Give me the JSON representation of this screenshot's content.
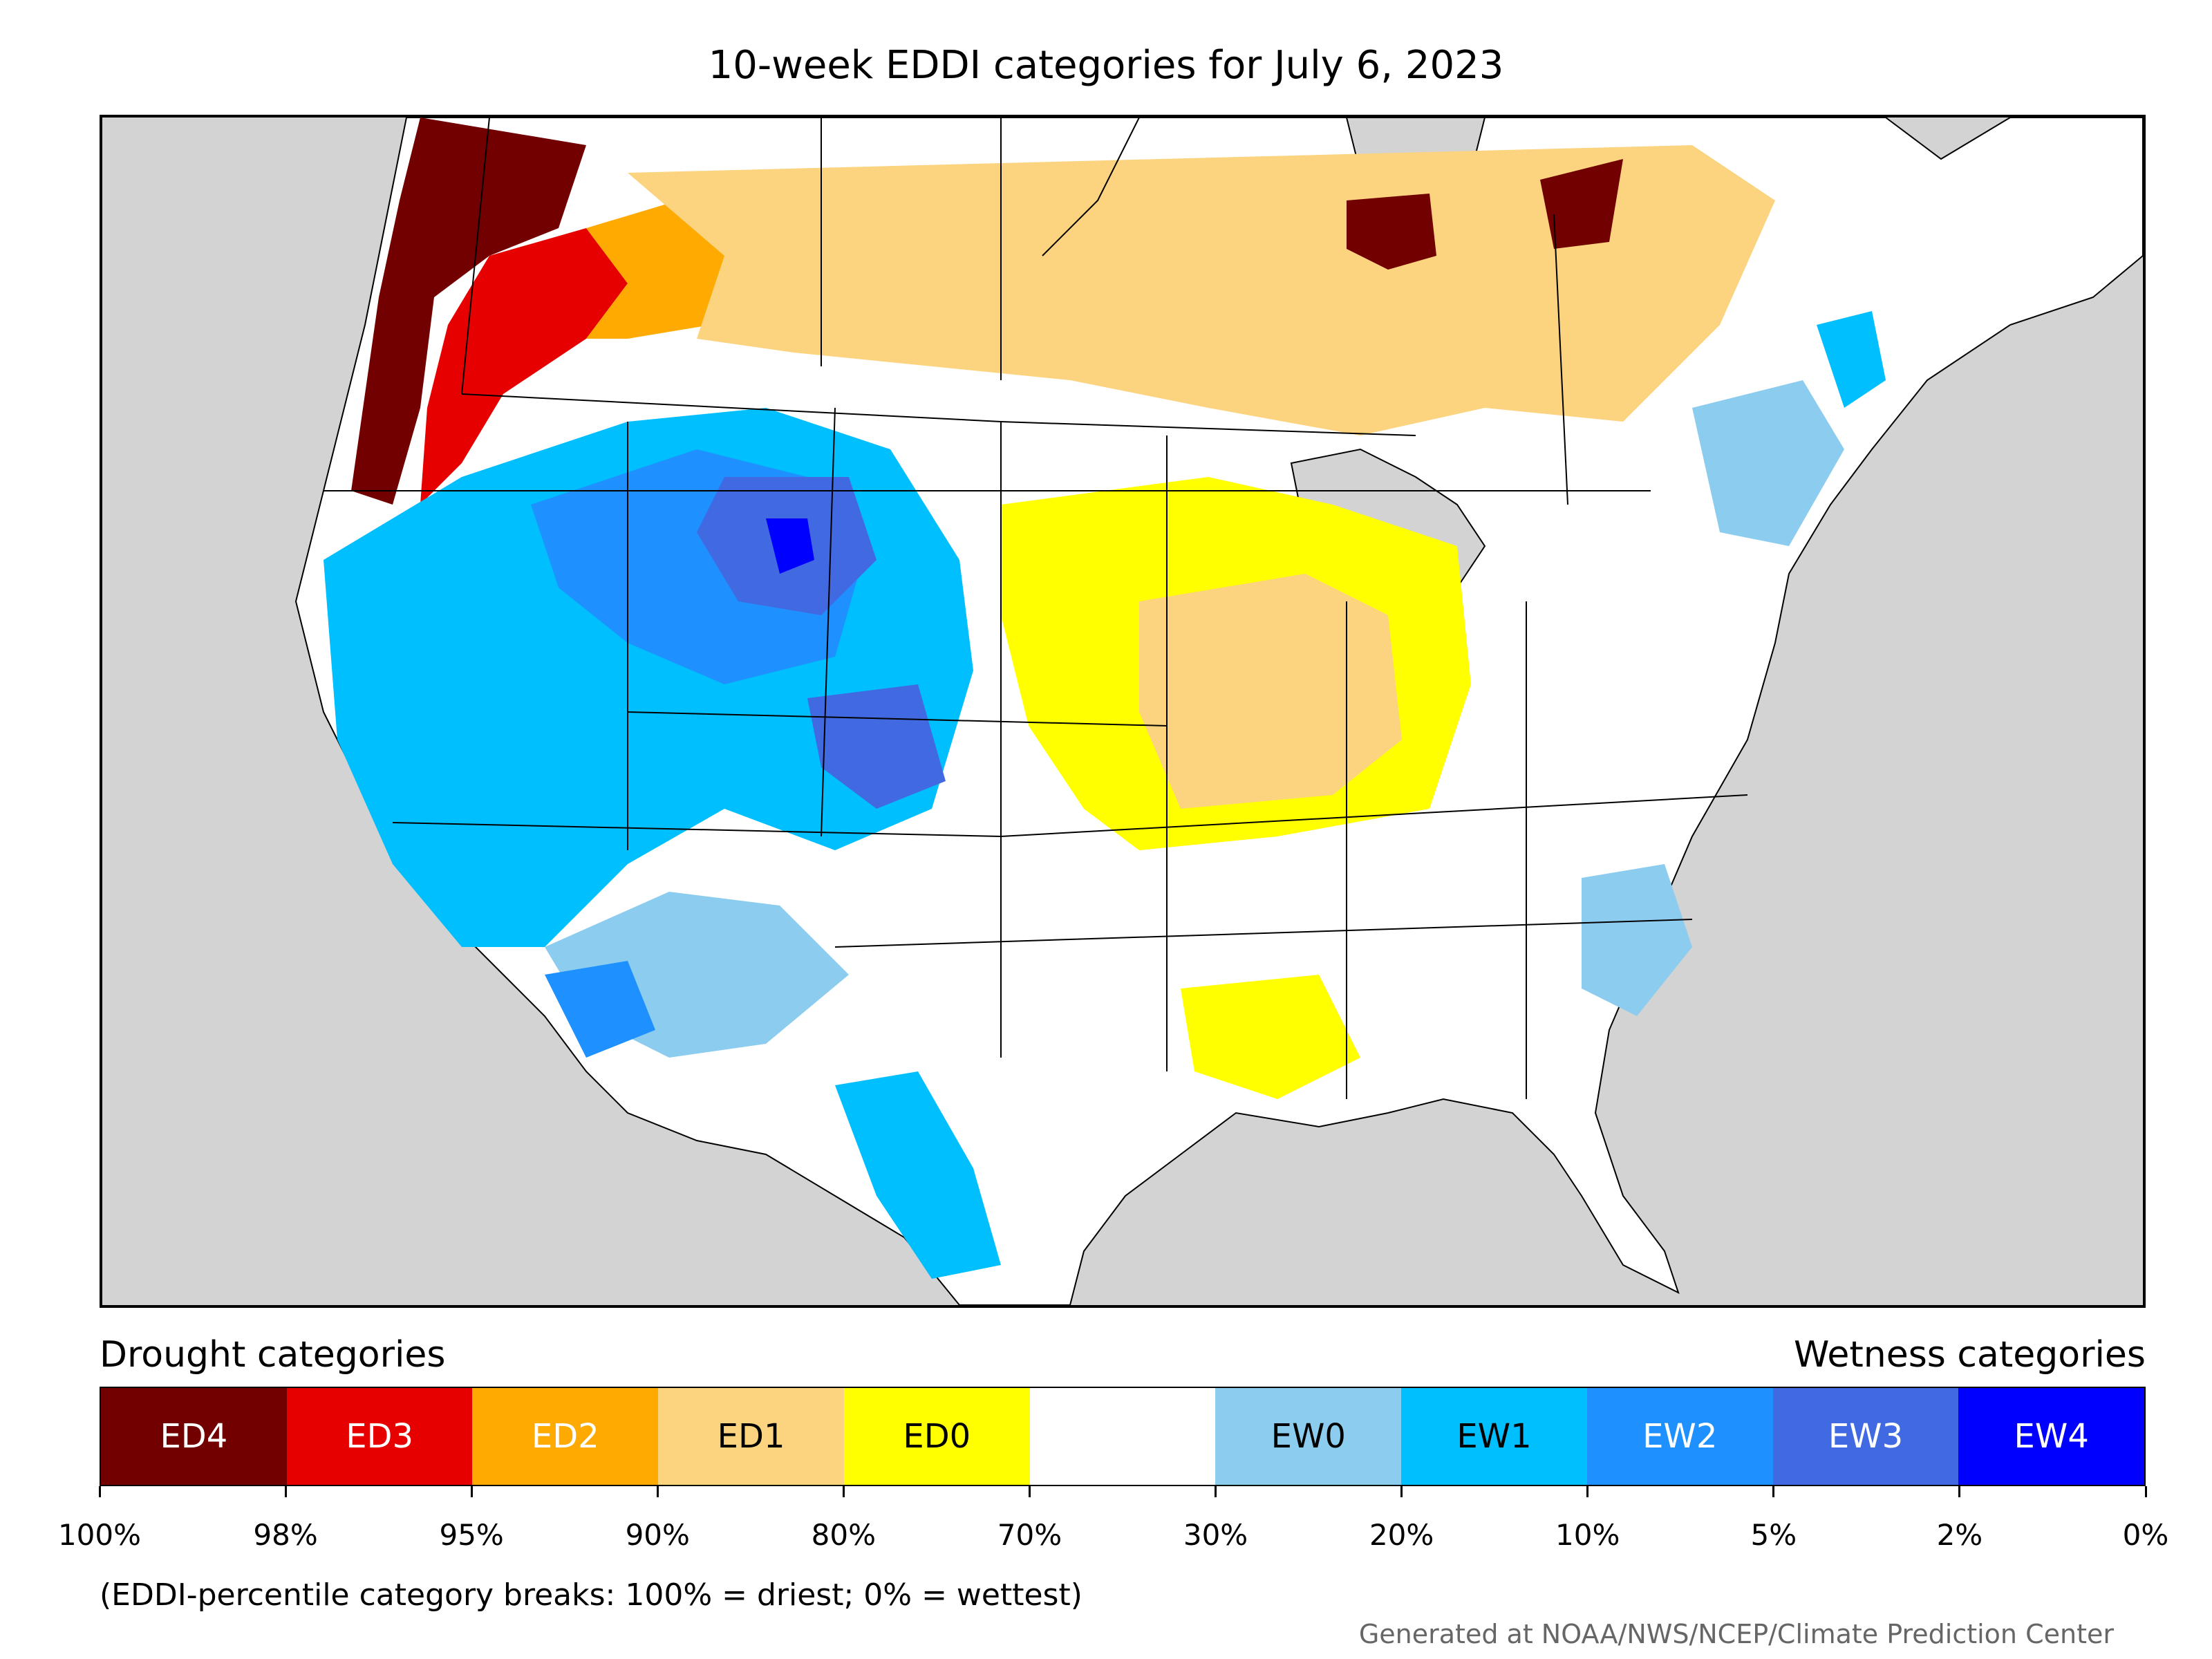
{
  "title": "10-week EDDI categories for July 6, 2023",
  "legend": {
    "drought_label": "Drought categories",
    "wetness_label": "Wetness categories",
    "categories": [
      {
        "code": "ED4",
        "color": "#730000",
        "text_color": "#ffffff"
      },
      {
        "code": "ED3",
        "color": "#e60000",
        "text_color": "#ffffff"
      },
      {
        "code": "ED2",
        "color": "#ffaa00",
        "text_color": "#ffffff"
      },
      {
        "code": "ED1",
        "color": "#fcd37f",
        "text_color": "#000000"
      },
      {
        "code": "ED0",
        "color": "#ffff00",
        "text_color": "#000000"
      },
      {
        "code": "",
        "color": "#ffffff",
        "text_color": "#000000"
      },
      {
        "code": "EW0",
        "color": "#8ccdef",
        "text_color": "#000000"
      },
      {
        "code": "EW1",
        "color": "#00bfff",
        "text_color": "#000000"
      },
      {
        "code": "EW2",
        "color": "#1e90ff",
        "text_color": "#ffffff"
      },
      {
        "code": "EW3",
        "color": "#4169e1",
        "text_color": "#ffffff"
      },
      {
        "code": "EW4",
        "color": "#0000ff",
        "text_color": "#ffffff"
      }
    ],
    "breaks": [
      "100%",
      "98%",
      "95%",
      "90%",
      "80%",
      "70%",
      "30%",
      "20%",
      "10%",
      "5%",
      "2%",
      "0%"
    ]
  },
  "note": "(EDDI-percentile category breaks: 100% = driest; 0% = wettest)",
  "credit": "Generated at NOAA/NWS/NCEP/Climate Prediction Center",
  "map": {
    "background_color": "#d3d3d3",
    "regions": [
      {
        "name": "pacific-northwest-coast",
        "category": "ED4"
      },
      {
        "name": "ontario-quebec-border",
        "category": "ED4"
      },
      {
        "name": "northern-rockies-bc",
        "category": "ED3"
      },
      {
        "name": "western-canada-plains",
        "category": "ED1"
      },
      {
        "name": "midwest-corn-belt",
        "category": "ED1"
      },
      {
        "name": "great-lakes-ontario",
        "category": "ED0"
      },
      {
        "name": "great-basin-rockies",
        "category": "EW1"
      },
      {
        "name": "wyoming-colorado",
        "category": "EW3"
      },
      {
        "name": "southwest-desert",
        "category": "EW0"
      },
      {
        "name": "southeast",
        "category": "EW0"
      }
    ]
  }
}
